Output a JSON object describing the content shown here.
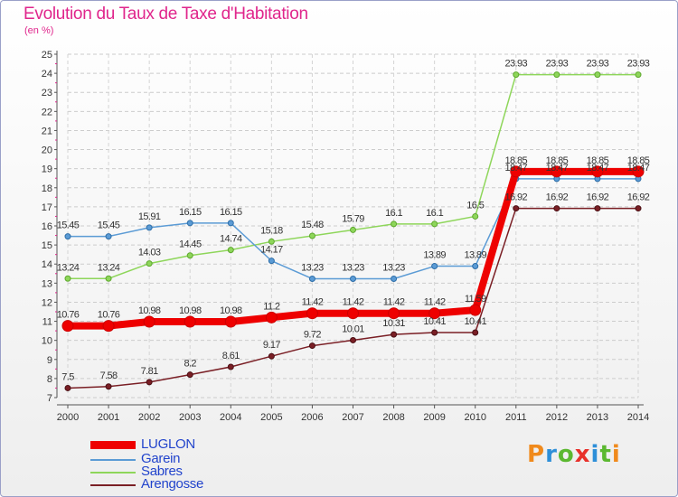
{
  "header": {
    "title": "Evolution du Taux de Taxe d'Habitation",
    "unit": "(en %)"
  },
  "logo": {
    "letters": [
      "P",
      "r",
      "o",
      "x",
      "i",
      "t",
      "i"
    ],
    "colors": [
      "#f08a1c",
      "#2e8fd8",
      "#5bb830",
      "#e8302a",
      "#2e8fd8",
      "#5bb830",
      "#f08a1c"
    ]
  },
  "chart_data": {
    "type": "line",
    "title": "Evolution du Taux de Taxe d'Habitation",
    "ylabel": "(en %)",
    "xlabel": "",
    "x": [
      "2000",
      "2001",
      "2002",
      "2003",
      "2004",
      "2005",
      "2006",
      "2007",
      "2008",
      "2009",
      "2010",
      "2011",
      "2012",
      "2013",
      "2014"
    ],
    "ylim": [
      7,
      25
    ],
    "yticks": [
      7,
      8,
      9,
      10,
      11,
      12,
      13,
      14,
      15,
      16,
      17,
      18,
      19,
      20,
      21,
      22,
      23,
      24,
      25
    ],
    "grid": "dashed",
    "legend_position": "bottom-left",
    "series": [
      {
        "name": "LUGLON",
        "color": "#ee0000",
        "values": [
          10.76,
          10.76,
          10.98,
          10.98,
          10.98,
          11.2,
          11.42,
          11.42,
          11.42,
          11.42,
          11.59,
          18.85,
          18.85,
          18.85,
          18.85
        ],
        "labels": [
          "10.76",
          "10.76",
          "10.98",
          "10.98",
          "10.98",
          "11.2",
          "11.42",
          "11.42",
          "11.42",
          "11.42",
          "11.59",
          "18.85",
          "18.85",
          "18.85",
          "18.85"
        ]
      },
      {
        "name": "Garein",
        "color": "#5b9bd5",
        "values": [
          15.45,
          15.45,
          15.91,
          16.15,
          16.15,
          14.17,
          13.23,
          13.23,
          13.23,
          13.89,
          13.89,
          18.47,
          18.47,
          18.47,
          18.47
        ],
        "labels": [
          "15.45",
          "15.45",
          "15.91",
          "16.15",
          "16.15",
          "14.17",
          "13.23",
          "13.23",
          "13.23",
          "13.89",
          "13.89",
          "18.47",
          "18.47",
          "18.47",
          "18.47"
        ]
      },
      {
        "name": "Sabres",
        "color": "#8ed65a",
        "values": [
          13.24,
          13.24,
          14.03,
          14.45,
          14.74,
          15.18,
          15.48,
          15.79,
          16.1,
          16.1,
          16.5,
          23.93,
          23.93,
          23.93,
          23.93
        ],
        "labels": [
          "13.24",
          "13.24",
          "14.03",
          "14.45",
          "14.74",
          "15.18",
          "15.48",
          "15.79",
          "16.1",
          "16.1",
          "16.5",
          "23.93",
          "23.93",
          "23.93",
          "23.93"
        ]
      },
      {
        "name": "Arengosse",
        "color": "#7a1f25",
        "values": [
          7.5,
          7.58,
          7.81,
          8.2,
          8.61,
          9.17,
          9.72,
          10.01,
          10.31,
          10.41,
          10.41,
          16.92,
          16.92,
          16.92,
          16.92
        ],
        "labels": [
          "7.5",
          "7.58",
          "7.81",
          "8.2",
          "8.61",
          "9.17",
          "9.72",
          "10.01",
          "10.31",
          "10.41",
          "10.41",
          "16.92",
          "16.92",
          "16.92",
          "16.92"
        ]
      }
    ]
  }
}
